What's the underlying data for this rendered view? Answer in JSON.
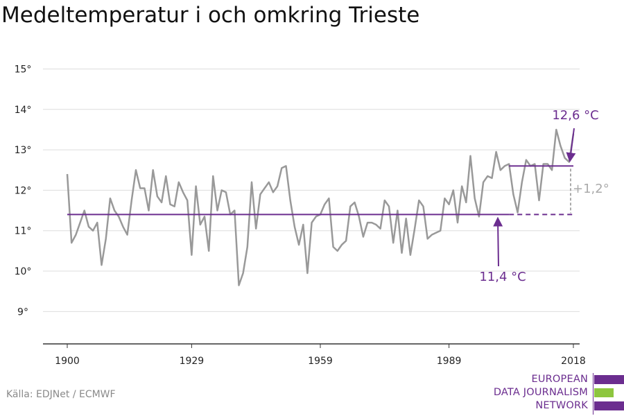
{
  "title": "Medeltemperatur i och omkring Trieste",
  "source": "Källa: EDJNet / ECMWF",
  "logo": {
    "lines": [
      "EUROPEAN",
      "DATA JOURNALISM",
      "NETWORK"
    ],
    "colors": [
      "#6b2d8f",
      "#8dc63f",
      "#6b2d8f"
    ]
  },
  "colors": {
    "series": "#999999",
    "accent": "#6b2d8f",
    "diff": "#aaaaaa"
  },
  "chart_data": {
    "type": "line",
    "title": "Medeltemperatur i och omkring Trieste",
    "xlim": [
      1900,
      2018
    ],
    "ylim": [
      8.2,
      15.3
    ],
    "x_ticks": [
      1900,
      1929,
      1959,
      1989,
      2018
    ],
    "y_ticks": [
      9,
      10,
      11,
      12,
      13,
      14,
      15
    ],
    "y_tick_labels": [
      "9°",
      "10°",
      "11°",
      "12°",
      "13°",
      "14°",
      "15°"
    ],
    "grid": true,
    "series": [
      {
        "x": [
          1900,
          1901,
          1902,
          1903,
          1904,
          1905,
          1906,
          1907,
          1908,
          1909,
          1910,
          1911,
          1912,
          1913,
          1914,
          1915,
          1916,
          1917,
          1918,
          1919,
          1920,
          1921,
          1922,
          1923,
          1924,
          1925,
          1926,
          1927,
          1928,
          1929,
          1930,
          1931,
          1932,
          1933,
          1934,
          1935,
          1936,
          1937,
          1938,
          1939,
          1940,
          1941,
          1942,
          1943,
          1944,
          1945,
          1946,
          1947,
          1948,
          1949,
          1950,
          1951,
          1952,
          1953,
          1954,
          1955,
          1956,
          1957,
          1958,
          1959,
          1960,
          1961,
          1962,
          1963,
          1964,
          1965,
          1966,
          1967,
          1968,
          1969,
          1970,
          1971,
          1972,
          1973,
          1974,
          1975,
          1976,
          1977,
          1978,
          1979,
          1980,
          1981,
          1982,
          1983,
          1984,
          1985,
          1986,
          1987,
          1988,
          1989,
          1990,
          1991,
          1992,
          1993,
          1994,
          1995,
          1996,
          1997,
          1998,
          1999,
          2000,
          2001,
          2002,
          2003,
          2004,
          2005,
          2006,
          2007,
          2008,
          2009,
          2010,
          2011,
          2012,
          2013,
          2014,
          2015,
          2016,
          2017,
          2018
        ],
        "values": [
          12.4,
          10.7,
          10.9,
          11.2,
          11.5,
          11.1,
          11.0,
          11.2,
          10.15,
          10.8,
          11.8,
          11.5,
          11.35,
          11.1,
          10.9,
          11.75,
          12.5,
          12.05,
          12.05,
          11.5,
          12.5,
          11.85,
          11.7,
          12.35,
          11.65,
          11.6,
          12.2,
          11.95,
          11.75,
          10.4,
          12.1,
          11.15,
          11.35,
          10.5,
          12.35,
          11.5,
          12.0,
          11.95,
          11.4,
          11.5,
          9.65,
          9.95,
          10.6,
          12.2,
          11.05,
          11.9,
          12.05,
          12.2,
          11.95,
          12.1,
          12.55,
          12.6,
          11.75,
          11.1,
          10.65,
          11.15,
          9.95,
          11.2,
          11.35,
          11.4,
          11.65,
          11.8,
          10.6,
          10.5,
          10.65,
          10.75,
          11.6,
          11.7,
          11.35,
          10.85,
          11.2,
          11.2,
          11.15,
          11.05,
          11.75,
          11.6,
          10.7,
          11.5,
          10.45,
          11.3,
          10.4,
          11.05,
          11.75,
          11.6,
          10.8,
          10.9,
          10.95,
          11.0,
          11.8,
          11.65,
          12.0,
          11.2,
          12.1,
          11.7,
          12.85,
          11.8,
          11.35,
          12.2,
          12.35,
          12.3,
          12.95,
          12.5,
          12.6,
          12.65,
          11.9,
          11.45,
          12.2,
          12.75,
          12.6,
          12.65,
          11.75,
          12.65,
          12.65,
          12.5,
          13.5,
          13.1,
          12.8,
          12.7,
          13.4
        ]
      }
    ],
    "reference": {
      "baseline": {
        "value": 11.4,
        "label": "11,4 °C",
        "from": 1900,
        "solid_to": 2003,
        "dashed_to": 2018
      },
      "recent": {
        "value": 12.6,
        "label": "12,6 °C",
        "from": 2003,
        "to": 2018
      },
      "difference_label": "+1,2°"
    }
  }
}
